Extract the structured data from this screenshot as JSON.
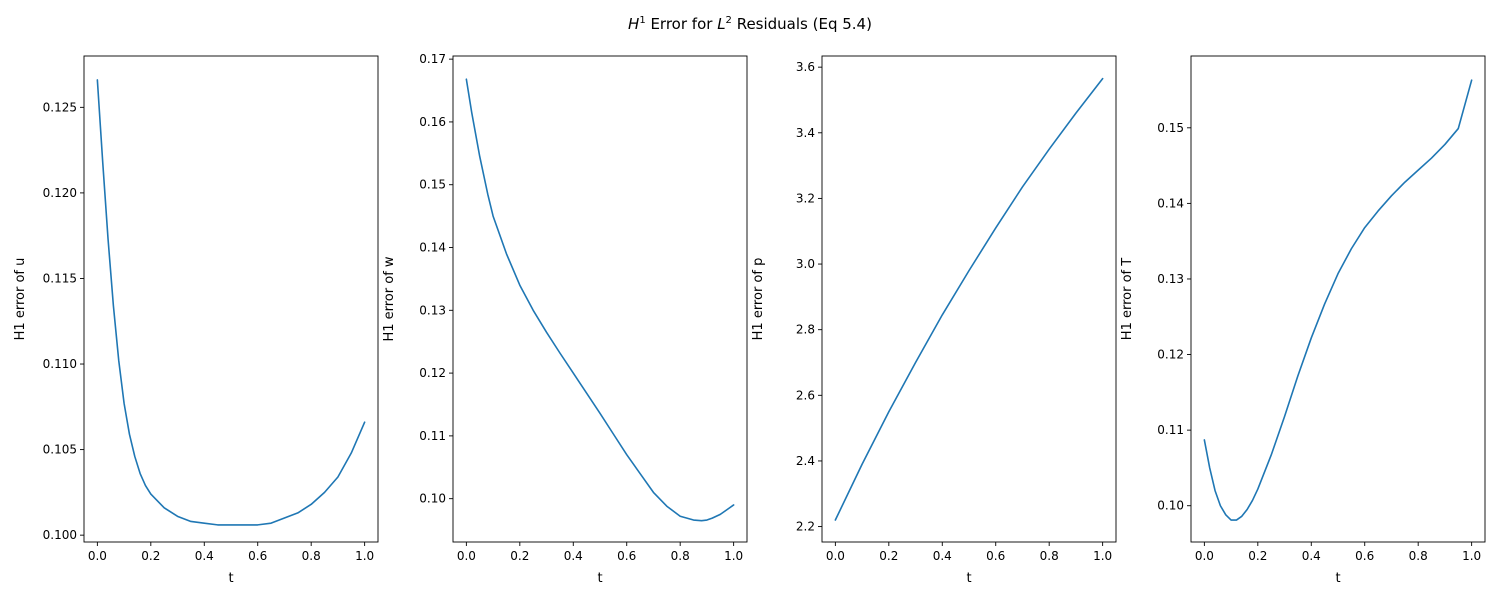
{
  "title": {
    "prefix": "H",
    "prefix_sup": "1",
    "middle": " Error for ",
    "mid_var": "L",
    "mid_sup": "2",
    "suffix": " Residuals (Eq 5.4)"
  },
  "colors": {
    "line": "#1f77b4",
    "axes": "#000000"
  },
  "chart_data": [
    {
      "type": "line",
      "xlabel": "t",
      "ylabel": "H1 error of u",
      "xlim": [
        -0.05,
        1.05
      ],
      "ylim": [
        0.0996,
        0.128
      ],
      "xticks": [
        0.0,
        0.2,
        0.4,
        0.6,
        0.8,
        1.0
      ],
      "xtick_labels": [
        "0.0",
        "0.2",
        "0.4",
        "0.6",
        "0.8",
        "1.0"
      ],
      "yticks": [
        0.1,
        0.105,
        0.11,
        0.115,
        0.12,
        0.125
      ],
      "ytick_labels": [
        "0.100",
        "0.105",
        "0.110",
        "0.115",
        "0.120",
        "0.125"
      ],
      "x": [
        0.0,
        0.02,
        0.04,
        0.06,
        0.08,
        0.1,
        0.12,
        0.14,
        0.16,
        0.18,
        0.2,
        0.25,
        0.3,
        0.35,
        0.4,
        0.45,
        0.5,
        0.55,
        0.6,
        0.65,
        0.7,
        0.75,
        0.8,
        0.85,
        0.9,
        0.95,
        1.0
      ],
      "y": [
        0.1266,
        0.1218,
        0.1173,
        0.1134,
        0.1102,
        0.1077,
        0.1059,
        0.1046,
        0.1036,
        0.1029,
        0.1024,
        0.1016,
        0.1011,
        0.1008,
        0.1007,
        0.1006,
        0.1006,
        0.1006,
        0.1006,
        0.1007,
        0.101,
        0.1013,
        0.1018,
        0.1025,
        0.1034,
        0.1048,
        0.1066
      ]
    },
    {
      "type": "line",
      "xlabel": "t",
      "ylabel": "H1 error of w",
      "xlim": [
        -0.05,
        1.05
      ],
      "ylim": [
        0.0931,
        0.1705
      ],
      "xticks": [
        0.0,
        0.2,
        0.4,
        0.6,
        0.8,
        1.0
      ],
      "xtick_labels": [
        "0.0",
        "0.2",
        "0.4",
        "0.6",
        "0.8",
        "1.0"
      ],
      "yticks": [
        0.1,
        0.11,
        0.12,
        0.13,
        0.14,
        0.15,
        0.16,
        0.17
      ],
      "ytick_labels": [
        "0.10",
        "0.11",
        "0.12",
        "0.13",
        "0.14",
        "0.15",
        "0.16",
        "0.17"
      ],
      "x": [
        0.0,
        0.02,
        0.05,
        0.08,
        0.1,
        0.15,
        0.2,
        0.25,
        0.3,
        0.35,
        0.4,
        0.45,
        0.5,
        0.55,
        0.6,
        0.65,
        0.7,
        0.75,
        0.8,
        0.85,
        0.88,
        0.9,
        0.92,
        0.95,
        0.98,
        1.0
      ],
      "y": [
        0.1668,
        0.1615,
        0.1545,
        0.1485,
        0.145,
        0.139,
        0.134,
        0.13,
        0.1265,
        0.1232,
        0.12,
        0.1168,
        0.1136,
        0.1103,
        0.107,
        0.104,
        0.101,
        0.0988,
        0.0972,
        0.0966,
        0.0965,
        0.0966,
        0.0969,
        0.0975,
        0.0984,
        0.099
      ]
    },
    {
      "type": "line",
      "xlabel": "t",
      "ylabel": "H1 error of p",
      "xlim": [
        -0.05,
        1.05
      ],
      "ylim": [
        2.153,
        3.634
      ],
      "xticks": [
        0.0,
        0.2,
        0.4,
        0.6,
        0.8,
        1.0
      ],
      "xtick_labels": [
        "0.0",
        "0.2",
        "0.4",
        "0.6",
        "0.8",
        "1.0"
      ],
      "yticks": [
        2.2,
        2.4,
        2.6,
        2.8,
        3.0,
        3.2,
        3.4,
        3.6
      ],
      "ytick_labels": [
        "2.2",
        "2.4",
        "2.6",
        "2.8",
        "3.0",
        "3.2",
        "3.4",
        "3.6"
      ],
      "x": [
        0.0,
        0.1,
        0.2,
        0.3,
        0.4,
        0.5,
        0.6,
        0.7,
        0.8,
        0.9,
        1.0
      ],
      "y": [
        2.22,
        2.39,
        2.55,
        2.7,
        2.845,
        2.98,
        3.11,
        3.235,
        3.35,
        3.46,
        3.565
      ]
    },
    {
      "type": "line",
      "xlabel": "t",
      "ylabel": "H1 error of T",
      "xlim": [
        -0.05,
        1.05
      ],
      "ylim": [
        0.0952,
        0.1595
      ],
      "xticks": [
        0.0,
        0.2,
        0.4,
        0.6,
        0.8,
        1.0
      ],
      "xtick_labels": [
        "0.0",
        "0.2",
        "0.4",
        "0.6",
        "0.8",
        "1.0"
      ],
      "yticks": [
        0.1,
        0.11,
        0.12,
        0.13,
        0.14,
        0.15
      ],
      "ytick_labels": [
        "0.10",
        "0.11",
        "0.12",
        "0.13",
        "0.14",
        "0.15"
      ],
      "x": [
        0.0,
        0.02,
        0.04,
        0.06,
        0.08,
        0.1,
        0.12,
        0.14,
        0.16,
        0.18,
        0.2,
        0.25,
        0.3,
        0.35,
        0.4,
        0.45,
        0.5,
        0.55,
        0.6,
        0.65,
        0.7,
        0.75,
        0.8,
        0.85,
        0.9,
        0.95,
        1.0
      ],
      "y": [
        0.1087,
        0.105,
        0.102,
        0.1,
        0.0988,
        0.0981,
        0.0981,
        0.0986,
        0.0995,
        0.1007,
        0.1022,
        0.1067,
        0.1118,
        0.1172,
        0.1222,
        0.1267,
        0.1307,
        0.134,
        0.1368,
        0.139,
        0.141,
        0.1428,
        0.1444,
        0.146,
        0.1478,
        0.1499,
        0.1563
      ]
    }
  ]
}
